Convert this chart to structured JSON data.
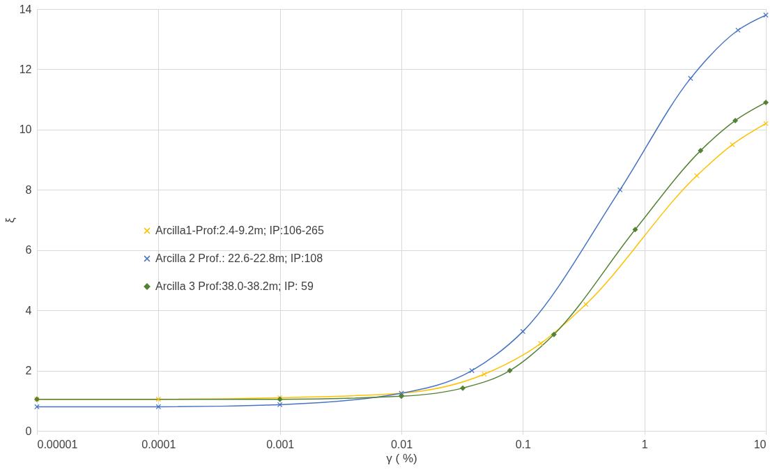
{
  "chart_data": {
    "type": "line",
    "xlabel": "γ ( %)",
    "ylabel": "ξ",
    "log": "x",
    "grid": true,
    "legend": "left",
    "line_style": "solid",
    "xlim": [
      1e-05,
      10
    ],
    "xticks": [
      {
        "value": 1e-05,
        "label": "0.00001"
      },
      0.0001,
      0.001,
      0.01,
      0.1,
      1,
      10
    ],
    "ylim": [
      0,
      14
    ],
    "yticks": [
      0,
      2,
      4,
      6,
      8,
      10,
      12,
      14
    ],
    "series": [
      {
        "name": "Arcilla1-Prof:2.4-9.2m; IP:106-265",
        "color": "#ffc000",
        "marker": "cross",
        "x": [
          1e-05,
          0.0001,
          0.001,
          0.01,
          0.048,
          0.14,
          0.33,
          2.7,
          5.3,
          10
        ],
        "values": [
          1.05,
          1.05,
          1.1,
          1.25,
          1.88,
          2.9,
          4.2,
          8.47,
          9.5,
          10.2
        ]
      },
      {
        "name": "Arcilla 2 Prof.: 22.6-22.8m; IP:108",
        "color": "#4472c4",
        "marker": "cross",
        "x": [
          1e-05,
          0.0001,
          0.001,
          0.01,
          0.038,
          0.1,
          0.63,
          2.4,
          5.9,
          10
        ],
        "values": [
          0.8,
          0.8,
          0.87,
          1.25,
          2.0,
          3.3,
          8.0,
          11.7,
          13.3,
          13.8
        ]
      },
      {
        "name": "Arcilla 3 Prof:38.0-38.2m; IP: 59",
        "color": "#548235",
        "marker": "diamond",
        "x": [
          1e-05,
          0.001,
          0.01,
          0.032,
          0.078,
          0.18,
          0.84,
          2.9,
          5.6,
          10
        ],
        "values": [
          1.05,
          1.05,
          1.15,
          1.42,
          2.0,
          3.2,
          6.68,
          9.3,
          10.3,
          10.9
        ]
      }
    ]
  }
}
